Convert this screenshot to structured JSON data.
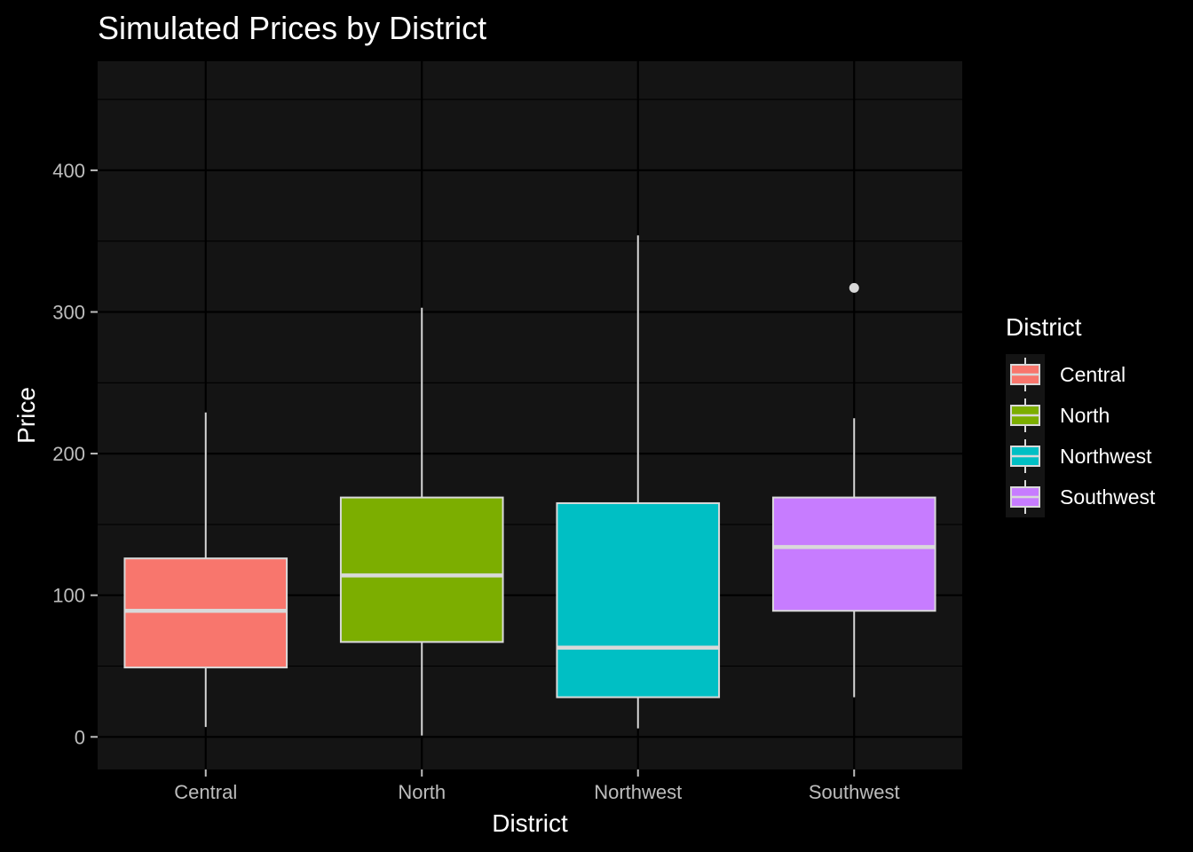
{
  "chart_data": {
    "type": "boxplot",
    "title": "Simulated Prices by District",
    "xlabel": "District",
    "ylabel": "Price",
    "categories": [
      "Central",
      "North",
      "Northwest",
      "Southwest"
    ],
    "ylim": [
      -23,
      477
    ],
    "yticks": [
      0,
      100,
      200,
      300,
      400
    ],
    "grid": true,
    "boxes": [
      {
        "name": "Central",
        "color": "#F8766D",
        "whisker_low": 7,
        "q1": 49,
        "median": 89,
        "q3": 126,
        "whisker_high": 229,
        "outliers": []
      },
      {
        "name": "North",
        "color": "#7CAE00",
        "whisker_low": 1,
        "q1": 67,
        "median": 114,
        "q3": 169,
        "whisker_high": 303,
        "outliers": []
      },
      {
        "name": "Northwest",
        "color": "#00BFC4",
        "whisker_low": 6,
        "q1": 28,
        "median": 63,
        "q3": 165,
        "whisker_high": 354,
        "outliers": []
      },
      {
        "name": "Southwest",
        "color": "#C77CFF",
        "whisker_low": 28,
        "q1": 89,
        "median": 134,
        "q3": 169,
        "whisker_high": 225,
        "outliers": [
          317
        ]
      }
    ],
    "legend": {
      "title": "District",
      "placement": "right",
      "entries": [
        "Central",
        "North",
        "Northwest",
        "Southwest"
      ]
    },
    "colors": {
      "page_background": "#000000",
      "panel_background": "#141414",
      "grid": "#000000",
      "box_outline": "#d9d9d9"
    }
  }
}
